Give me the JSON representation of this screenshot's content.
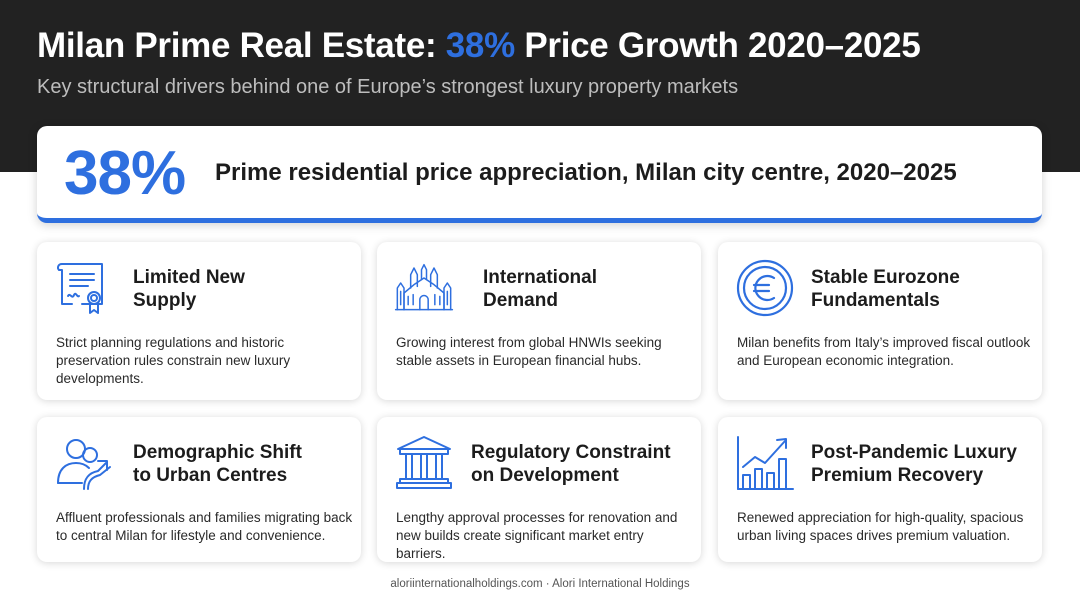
{
  "header": {
    "title_prefix": "Milan Prime Real Estate: ",
    "title_accent": "38%",
    "title_suffix": " Price Growth 2020–2025",
    "subtitle": "Key structural drivers behind one of Europe’s strongest luxury property markets"
  },
  "hero": {
    "number": "38%",
    "text": "Prime residential price appreciation, Milan city centre, 2020–2025"
  },
  "cards": [
    {
      "icon": "certificate-icon",
      "title_line1": "Limited New",
      "title_line2": "Supply",
      "desc": "Strict planning regulations and historic preservation rules constrain new luxury developments."
    },
    {
      "icon": "cathedral-icon",
      "title_line1": "International",
      "title_line2": "Demand",
      "desc": "Growing interest from global HNWIs seeking stable assets in European financial hubs."
    },
    {
      "icon": "euro-coin-icon",
      "title_line1": "Stable Eurozone",
      "title_line2": "Fundamentals",
      "desc": "Milan benefits from Italy’s improved fiscal outlook and European economic integration."
    },
    {
      "icon": "people-arrow-icon",
      "title_line1": "Demographic Shift",
      "title_line2": "to Urban Centres",
      "desc": "Affluent professionals and families migrating back to central Milan for lifestyle and convenience."
    },
    {
      "icon": "government-building-icon",
      "title_line1": "Regulatory Constraint",
      "title_line2": "on Development",
      "desc": "Lengthy approval processes for renovation and new builds create significant market entry barriers."
    },
    {
      "icon": "growth-chart-icon",
      "title_line1": "Post-Pandemic Luxury",
      "title_line2": "Premium Recovery",
      "desc": "Renewed appreciation for high-quality, spacious urban living spaces drives premium valuation."
    }
  ],
  "footer": {
    "text": "aloriinternationalholdings.com · Alori International Holdings"
  },
  "colors": {
    "accent": "#2e6fdf",
    "header_bg": "#222222",
    "text": "#1c1c1c"
  }
}
